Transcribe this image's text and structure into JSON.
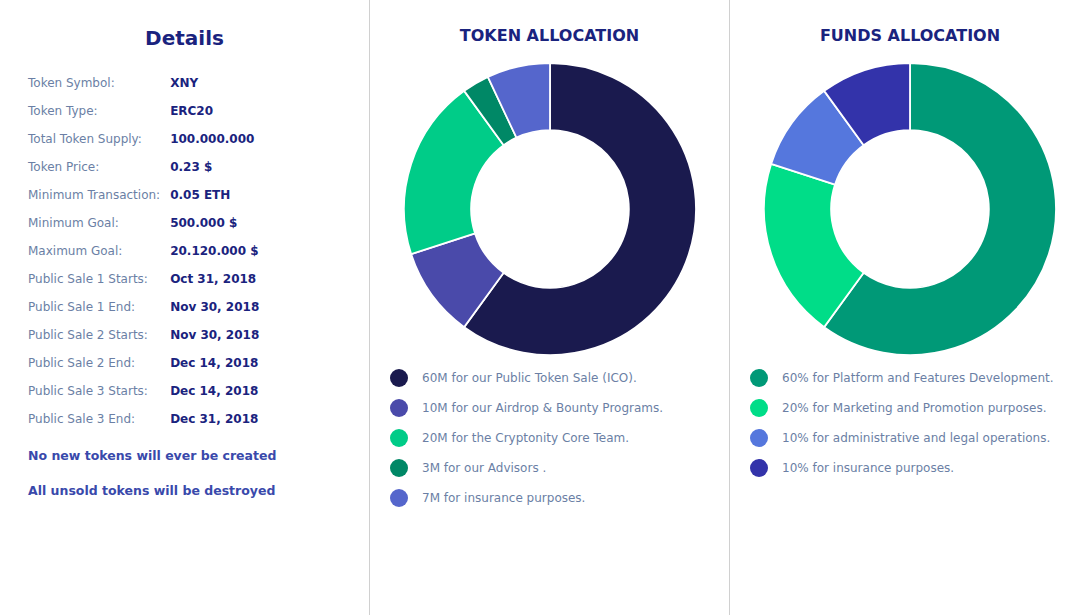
{
  "chart_data": [
    {
      "type": "table",
      "title": "Details",
      "categories": [
        "Token Symbol:",
        "Token Type:",
        "Total Token Supply:",
        "Token Price:",
        "Minimum Transaction:",
        "Minimum Goal:",
        "Maximum Goal:",
        "Public Sale 1 Starts:",
        "Public Sale 1 End:",
        "Public Sale 2 Starts:",
        "Public Sale 2 End:",
        "Public Sale 3 Starts:",
        "Public Sale 3 End:"
      ],
      "values": [
        "XNY",
        "ERC20",
        "100.000.000",
        "0.23 $",
        "0.05 ETH",
        "500.000 $",
        "20.120.000 $",
        "Oct 31, 2018",
        "Nov 30, 2018",
        "Nov 30, 2018",
        "Dec 14, 2018",
        "Dec 14, 2018",
        "Dec 31, 2018"
      ],
      "annotations": [
        "No new tokens will ever be created",
        "All unsold tokens will be destroyed"
      ]
    },
    {
      "type": "donut",
      "title": "TOKEN ALLOCATION",
      "categories": [
        "60M for our Public Token Sale (ICO).",
        "10M for our Airdrop & Bounty Programs.",
        "20M for the Cryptonity Core Team.",
        "3M for our Advisors .",
        "7M for insurance purposes."
      ],
      "values": [
        60,
        10,
        20,
        3,
        7
      ],
      "colors": [
        "#1a1a4e",
        "#4a4aaa",
        "#00cc88",
        "#008866",
        "#5566cc"
      ],
      "legend": "bottom"
    },
    {
      "type": "donut",
      "title": "FUNDS ALLOCATION",
      "categories": [
        "60% for Platform and Features Development.",
        "20% for Marketing and Promotion purposes.",
        "10% for administrative and legal operations.",
        "10% for insurance purposes."
      ],
      "values": [
        60,
        20,
        10,
        10
      ],
      "colors": [
        "#009977",
        "#00dd88",
        "#5577dd",
        "#3333aa"
      ],
      "legend": "bottom"
    }
  ]
}
